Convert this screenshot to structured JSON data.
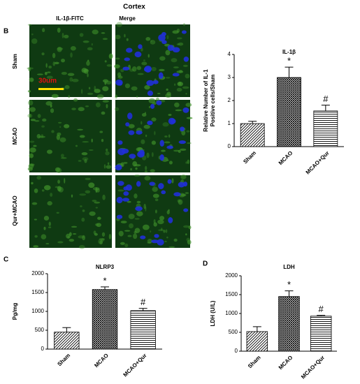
{
  "figure": {
    "title": "Cortex",
    "panel_labels": [
      "B",
      "C",
      "D"
    ],
    "columns": [
      "IL-1β-FITC",
      "Merge"
    ],
    "rows": [
      "Sham",
      "MCAO",
      "Qur+MCAO"
    ],
    "scale_bar": "30um"
  },
  "chart_data": [
    {
      "type": "bar",
      "title": "IL-1β",
      "ylabel": [
        "Relative Number of IL-1",
        "Positive cells/Sham"
      ],
      "categories": [
        "Sham",
        "MCAO",
        "MCAO+Qur"
      ],
      "values": [
        1.0,
        3.0,
        1.55
      ],
      "errors": [
        0.1,
        0.45,
        0.25
      ],
      "annotations": [
        null,
        "*",
        "#"
      ],
      "patterns": [
        "diagonal",
        "checker",
        "horizontal"
      ],
      "ylim": [
        0,
        4
      ],
      "yticks": [
        0,
        1,
        2,
        3,
        4
      ]
    },
    {
      "type": "bar",
      "title": "NLRP3",
      "ylabel": [
        "Pg/mg"
      ],
      "categories": [
        "Sham",
        "MCAO",
        "MCAO+Qur"
      ],
      "values": [
        450,
        1580,
        1020
      ],
      "errors": [
        120,
        70,
        60
      ],
      "annotations": [
        null,
        "*",
        "#"
      ],
      "patterns": [
        "diagonal",
        "checker",
        "horizontal"
      ],
      "ylim": [
        0,
        2000
      ],
      "yticks": [
        0,
        500,
        1000,
        1500,
        2000
      ]
    },
    {
      "type": "bar",
      "title": "LDH",
      "ylabel": [
        "LDH (U/L)"
      ],
      "categories": [
        "Sham",
        "MCAO",
        "MCAO+Qur"
      ],
      "values": [
        520,
        1450,
        930
      ],
      "errors": [
        130,
        150,
        20
      ],
      "annotations": [
        null,
        "*",
        "#"
      ],
      "patterns": [
        "diagonal",
        "checker",
        "horizontal"
      ],
      "ylim": [
        0,
        2000
      ],
      "yticks": [
        0,
        500,
        1000,
        1500,
        2000
      ]
    }
  ]
}
